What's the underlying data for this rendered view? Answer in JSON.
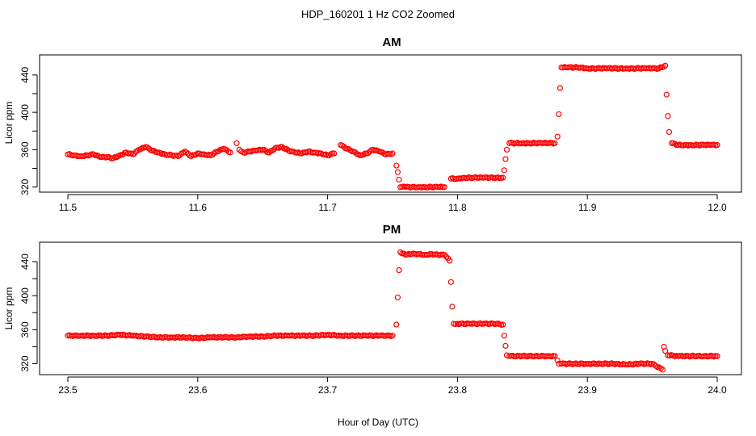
{
  "figure": {
    "title": "HDP_160201  1 Hz CO2 Zoomed",
    "xlabel": "Hour of Day (UTC)",
    "marker_color": "#ff0000"
  },
  "chart_data": [
    {
      "type": "scatter",
      "title": "AM",
      "ylabel": "Licor ppm",
      "xlim": [
        11.5,
        12.0
      ],
      "ylim": [
        318,
        458
      ],
      "xticks": [
        "11.5",
        "11.6",
        "11.7",
        "11.8",
        "11.9",
        "12.0"
      ],
      "yticks": [
        "320",
        "360",
        "400",
        "440"
      ],
      "points": [
        [
          11.5,
          355
        ],
        [
          11.505,
          354
        ],
        [
          11.51,
          353
        ],
        [
          11.515,
          354
        ],
        [
          11.52,
          355
        ],
        [
          11.525,
          352
        ],
        [
          11.53,
          352
        ],
        [
          11.535,
          351
        ],
        [
          11.54,
          354
        ],
        [
          11.545,
          357
        ],
        [
          11.55,
          355
        ],
        [
          11.555,
          360
        ],
        [
          11.56,
          363
        ],
        [
          11.565,
          359
        ],
        [
          11.57,
          357
        ],
        [
          11.575,
          355
        ],
        [
          11.58,
          354
        ],
        [
          11.585,
          353
        ],
        [
          11.59,
          358
        ],
        [
          11.595,
          353
        ],
        [
          11.6,
          356
        ],
        [
          11.605,
          355
        ],
        [
          11.61,
          354
        ],
        [
          11.615,
          358
        ],
        [
          11.62,
          361
        ],
        [
          11.625,
          357
        ],
        [
          11.63,
          367
        ],
        [
          11.632,
          360
        ],
        [
          11.635,
          357
        ],
        [
          11.64,
          358
        ],
        [
          11.645,
          359
        ],
        [
          11.65,
          360
        ],
        [
          11.655,
          357
        ],
        [
          11.66,
          362
        ],
        [
          11.665,
          363
        ],
        [
          11.67,
          359
        ],
        [
          11.675,
          357
        ],
        [
          11.68,
          356
        ],
        [
          11.685,
          358
        ],
        [
          11.69,
          357
        ],
        [
          11.695,
          356
        ],
        [
          11.7,
          354
        ],
        [
          11.705,
          356
        ],
        [
          11.71,
          365
        ],
        [
          11.715,
          361
        ],
        [
          11.72,
          358
        ],
        [
          11.725,
          354
        ],
        [
          11.73,
          356
        ],
        [
          11.735,
          360
        ],
        [
          11.74,
          358
        ],
        [
          11.745,
          355
        ],
        [
          11.75,
          356
        ],
        [
          11.753,
          343
        ],
        [
          11.754,
          336
        ],
        [
          11.755,
          328
        ],
        [
          11.756,
          320
        ],
        [
          11.76,
          320
        ],
        [
          11.765,
          320
        ],
        [
          11.77,
          320
        ],
        [
          11.775,
          320
        ],
        [
          11.78,
          320
        ],
        [
          11.785,
          320
        ],
        [
          11.79,
          320
        ],
        [
          11.795,
          329
        ],
        [
          11.8,
          329
        ],
        [
          11.805,
          330
        ],
        [
          11.81,
          330
        ],
        [
          11.815,
          330
        ],
        [
          11.82,
          330
        ],
        [
          11.825,
          330
        ],
        [
          11.83,
          330
        ],
        [
          11.835,
          330
        ],
        [
          11.836,
          338
        ],
        [
          11.837,
          350
        ],
        [
          11.838,
          360
        ],
        [
          11.84,
          367
        ],
        [
          11.845,
          367
        ],
        [
          11.85,
          367
        ],
        [
          11.855,
          367
        ],
        [
          11.86,
          367
        ],
        [
          11.865,
          367
        ],
        [
          11.87,
          367
        ],
        [
          11.875,
          367
        ],
        [
          11.877,
          374
        ],
        [
          11.878,
          398
        ],
        [
          11.879,
          426
        ],
        [
          11.88,
          448
        ],
        [
          11.885,
          448
        ],
        [
          11.89,
          448
        ],
        [
          11.895,
          448
        ],
        [
          11.9,
          447
        ],
        [
          11.905,
          447
        ],
        [
          11.91,
          447
        ],
        [
          11.915,
          447
        ],
        [
          11.92,
          447
        ],
        [
          11.925,
          447
        ],
        [
          11.93,
          447
        ],
        [
          11.935,
          447
        ],
        [
          11.94,
          447
        ],
        [
          11.945,
          447
        ],
        [
          11.95,
          447
        ],
        [
          11.955,
          447
        ],
        [
          11.96,
          450
        ],
        [
          11.961,
          419
        ],
        [
          11.962,
          396
        ],
        [
          11.963,
          379
        ],
        [
          11.965,
          367
        ],
        [
          11.97,
          365
        ],
        [
          11.975,
          365
        ],
        [
          11.98,
          365
        ],
        [
          11.985,
          365
        ],
        [
          11.99,
          365
        ],
        [
          11.995,
          365
        ],
        [
          12.0,
          365
        ]
      ]
    },
    {
      "type": "scatter",
      "title": "PM",
      "ylabel": "Licor ppm",
      "xlim": [
        23.5,
        24.0
      ],
      "ylim": [
        311,
        459
      ],
      "xticks": [
        "23.5",
        "23.6",
        "23.7",
        "23.8",
        "23.9",
        "24.0"
      ],
      "yticks": [
        "320",
        "360",
        "400",
        "440"
      ],
      "points": [
        [
          23.5,
          353
        ],
        [
          23.51,
          353
        ],
        [
          23.52,
          353
        ],
        [
          23.53,
          353
        ],
        [
          23.54,
          354
        ],
        [
          23.55,
          353
        ],
        [
          23.56,
          352
        ],
        [
          23.57,
          351
        ],
        [
          23.58,
          351
        ],
        [
          23.59,
          351
        ],
        [
          23.6,
          350
        ],
        [
          23.61,
          351
        ],
        [
          23.62,
          351
        ],
        [
          23.63,
          351
        ],
        [
          23.64,
          352
        ],
        [
          23.65,
          352
        ],
        [
          23.66,
          353
        ],
        [
          23.67,
          353
        ],
        [
          23.68,
          353
        ],
        [
          23.69,
          353
        ],
        [
          23.7,
          354
        ],
        [
          23.71,
          353
        ],
        [
          23.72,
          353
        ],
        [
          23.73,
          353
        ],
        [
          23.74,
          353
        ],
        [
          23.75,
          353
        ],
        [
          23.753,
          366
        ],
        [
          23.754,
          398
        ],
        [
          23.755,
          430
        ],
        [
          23.756,
          451
        ],
        [
          23.76,
          448
        ],
        [
          23.765,
          449
        ],
        [
          23.77,
          449
        ],
        [
          23.775,
          448
        ],
        [
          23.78,
          449
        ],
        [
          23.785,
          448
        ],
        [
          23.79,
          448
        ],
        [
          23.794,
          441
        ],
        [
          23.795,
          416
        ],
        [
          23.796,
          387
        ],
        [
          23.797,
          367
        ],
        [
          23.8,
          367
        ],
        [
          23.81,
          367
        ],
        [
          23.82,
          367
        ],
        [
          23.83,
          367
        ],
        [
          23.835,
          366
        ],
        [
          23.836,
          353
        ],
        [
          23.837,
          341
        ],
        [
          23.838,
          330
        ],
        [
          23.84,
          329
        ],
        [
          23.85,
          329
        ],
        [
          23.86,
          329
        ],
        [
          23.87,
          329
        ],
        [
          23.875,
          329
        ],
        [
          23.877,
          324
        ],
        [
          23.878,
          320
        ],
        [
          23.88,
          320
        ],
        [
          23.89,
          320
        ],
        [
          23.9,
          320
        ],
        [
          23.91,
          320
        ],
        [
          23.92,
          320
        ],
        [
          23.93,
          319
        ],
        [
          23.94,
          320
        ],
        [
          23.95,
          320
        ],
        [
          23.958,
          313
        ],
        [
          23.959,
          340
        ],
        [
          23.96,
          335
        ],
        [
          23.962,
          330
        ],
        [
          23.97,
          329
        ],
        [
          23.98,
          329
        ],
        [
          23.99,
          329
        ],
        [
          24.0,
          329
        ]
      ]
    }
  ]
}
